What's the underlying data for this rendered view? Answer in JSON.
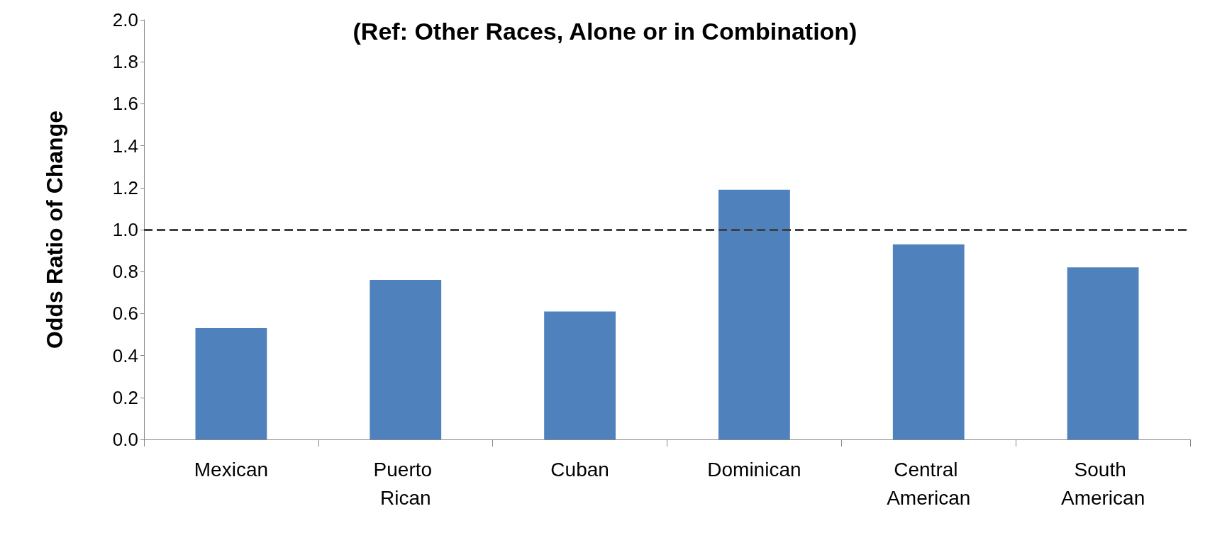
{
  "chart_data": {
    "type": "bar",
    "title": "(Ref: Other Races, Alone or in Combination)",
    "ylabel": "Odds Ratio of Change",
    "categories": [
      "Mexican",
      "Puerto Rican",
      "Cuban",
      "Dominican",
      "Central American",
      "South American"
    ],
    "values": [
      0.53,
      0.76,
      0.61,
      1.19,
      0.93,
      0.82
    ],
    "color": "#4f81bd",
    "ylim": [
      0,
      2
    ],
    "yticks": [
      {
        "value": 0,
        "label": "0.0"
      },
      {
        "value": 0.2,
        "label": "0.2"
      },
      {
        "value": 0.4,
        "label": "0.4"
      },
      {
        "value": 0.6,
        "label": "0.6"
      },
      {
        "value": 0.8,
        "label": "0.8"
      },
      {
        "value": 1,
        "label": "1.0"
      },
      {
        "value": 1.2,
        "label": "1.2"
      },
      {
        "value": 1.4,
        "label": "1.4"
      },
      {
        "value": 1.6,
        "label": "1.6"
      },
      {
        "value": 1.8,
        "label": "1.8"
      },
      {
        "value": 2,
        "label": "2.0"
      }
    ],
    "ref_lines": [
      {
        "axis": "y",
        "value": 1,
        "color": "#404040",
        "line_style": "dashed"
      }
    ],
    "grid": false
  }
}
